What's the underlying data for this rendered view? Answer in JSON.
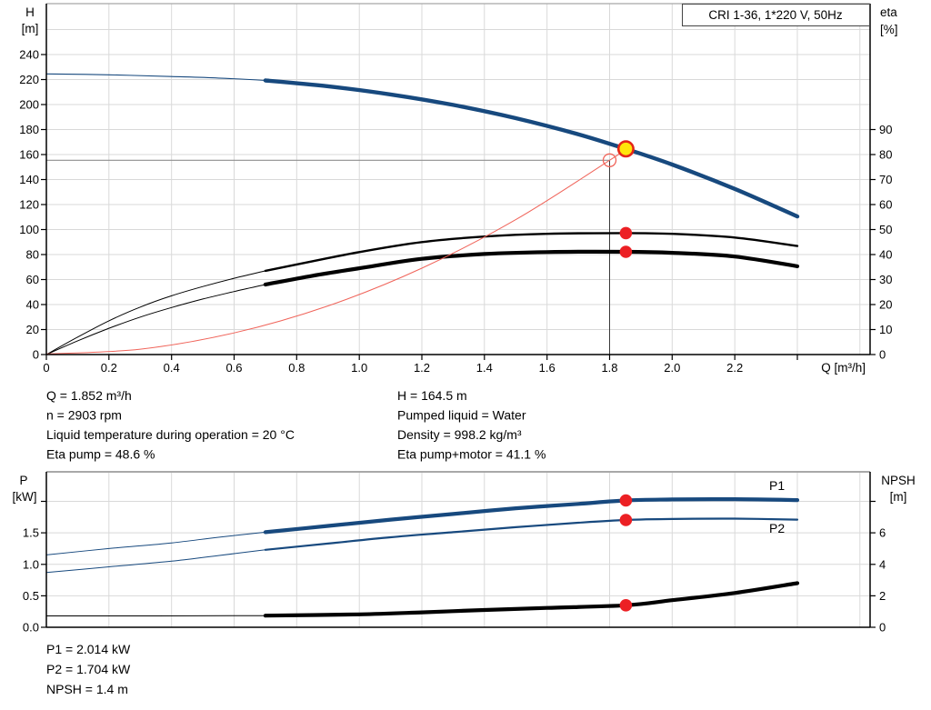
{
  "title_box": {
    "label": "CRI 1-36, 1*220 V, 50Hz"
  },
  "info_top": {
    "left": [
      "Q = 1.852 m³/h",
      "n = 2903 rpm",
      "Liquid temperature during operation = 20 °C",
      "Eta pump = 48.6 %"
    ],
    "right": [
      "H = 164.5 m",
      "Pumped liquid = Water",
      "Density = 998.2 kg/m³",
      "Eta pump+motor = 41.1 %"
    ]
  },
  "info_bottom": [
    "P1 = 2.014 kW",
    "P2 = 1.704 kW",
    "NPSH = 1.4 m"
  ],
  "colors": {
    "navy": "#17497e",
    "black": "#000000",
    "red_line": "#f0645a",
    "red_dot": "#ec2024",
    "yellow": "#ffe60a",
    "yellow_ring": "#e42618",
    "grid": "#d9d9d9",
    "border": "#a8a8a8",
    "crosshair_h": "#8f8f8f",
    "crosshair_v": "#3a3a3a"
  },
  "chart_data": [
    {
      "id": "qh-eta-chart",
      "type": "line",
      "x_axis": {
        "label": "Q [m³/h]",
        "min": 0,
        "max": 2.63,
        "tick_step": 0.2,
        "tick_labels": [
          "0",
          "0.2",
          "0.4",
          "0.6",
          "0.8",
          "1.0",
          "1.2",
          "1.4",
          "1.6",
          "1.8",
          "2.0",
          "2.2"
        ],
        "unlabeled_ticks": [
          2.4
        ]
      },
      "y_left": {
        "label": "H",
        "unit": "[m]",
        "min": 0,
        "max": 280,
        "tick_step": 20,
        "tick_labels": [
          "0",
          "20",
          "40",
          "60",
          "80",
          "100",
          "120",
          "140",
          "160",
          "180",
          "200",
          "220",
          "240"
        ]
      },
      "y_right": {
        "label": "eta",
        "unit": "[%]",
        "min": 0,
        "max": 140,
        "tick_step": 10,
        "tick_labels": [
          "0",
          "10",
          "20",
          "30",
          "40",
          "50",
          "60",
          "70",
          "80",
          "90"
        ]
      },
      "series": [
        {
          "name": "head-curve-lead",
          "axis": "left",
          "color": "navy",
          "width": 1.1,
          "points": [
            [
              0,
              224.5
            ],
            [
              0.2,
              223.8
            ],
            [
              0.4,
              222.4
            ],
            [
              0.55,
              221.2
            ],
            [
              0.7,
              219.3
            ]
          ]
        },
        {
          "name": "head-curve",
          "axis": "left",
          "color": "navy",
          "width": 4.4,
          "points": [
            [
              0.7,
              219.3
            ],
            [
              0.9,
              214.6
            ],
            [
              1.1,
              208.1
            ],
            [
              1.3,
              199.7
            ],
            [
              1.5,
              189.1
            ],
            [
              1.7,
              176.2
            ],
            [
              1.852,
              164.5
            ],
            [
              2.0,
              152.0
            ],
            [
              2.2,
              132.5
            ],
            [
              2.4,
              110.5
            ]
          ]
        },
        {
          "name": "eta-pump-lead",
          "axis": "right",
          "color": "black",
          "width": 1.0,
          "points": [
            [
              0,
              0
            ],
            [
              0.1,
              7
            ],
            [
              0.2,
              13.5
            ],
            [
              0.3,
              19
            ],
            [
              0.4,
              23.5
            ],
            [
              0.5,
              27.2
            ],
            [
              0.6,
              30.5
            ],
            [
              0.7,
              33.5
            ]
          ]
        },
        {
          "name": "eta-pump-curve",
          "axis": "right",
          "color": "black",
          "width": 2.4,
          "points": [
            [
              0.7,
              33.5
            ],
            [
              0.85,
              37.3
            ],
            [
              1.0,
              41.0
            ],
            [
              1.2,
              45.0
            ],
            [
              1.4,
              47.2
            ],
            [
              1.6,
              48.3
            ],
            [
              1.852,
              48.6
            ],
            [
              2.0,
              48.3
            ],
            [
              2.2,
              46.8
            ],
            [
              2.4,
              43.4
            ]
          ]
        },
        {
          "name": "eta-pump-motor-lead",
          "axis": "right",
          "color": "black",
          "width": 1.0,
          "points": [
            [
              0,
              0
            ],
            [
              0.1,
              5.5
            ],
            [
              0.2,
              10.5
            ],
            [
              0.3,
              15
            ],
            [
              0.4,
              18.8
            ],
            [
              0.5,
              22.2
            ],
            [
              0.6,
              25.2
            ],
            [
              0.7,
              28
            ]
          ]
        },
        {
          "name": "eta-pump-motor-curve",
          "axis": "right",
          "color": "black",
          "width": 4.2,
          "points": [
            [
              0.7,
              28
            ],
            [
              0.85,
              31.5
            ],
            [
              1.0,
              34.5
            ],
            [
              1.2,
              38.3
            ],
            [
              1.4,
              40.2
            ],
            [
              1.6,
              41.0
            ],
            [
              1.852,
              41.1
            ],
            [
              2.0,
              40.7
            ],
            [
              2.2,
              39.2
            ],
            [
              2.4,
              35.3
            ]
          ]
        },
        {
          "name": "system-curve",
          "axis": "left",
          "color": "red_line",
          "width": 1.0,
          "points": [
            [
              0,
              0.5
            ],
            [
              0.3,
              4.3
            ],
            [
              0.6,
              17.3
            ],
            [
              0.9,
              38.9
            ],
            [
              1.2,
              69.1
            ],
            [
              1.5,
              107.9
            ],
            [
              1.8,
              155.4
            ],
            [
              1.852,
              164.5
            ]
          ]
        }
      ],
      "duty_point": {
        "q": 1.852,
        "h": 164.5
      },
      "requested_point": {
        "q": 1.8,
        "h": 155.4
      },
      "dots": [
        {
          "q": 1.852,
          "axis": "right",
          "value": 48.6
        },
        {
          "q": 1.852,
          "axis": "right",
          "value": 41.1
        }
      ]
    },
    {
      "id": "power-npsh-chart",
      "type": "line",
      "x_axis": {
        "label": "",
        "min": 0,
        "max": 2.63,
        "tick_step": 0.2,
        "tick_labels": [],
        "unlabeled_ticks": []
      },
      "y_left": {
        "label": "P",
        "unit": "[kW]",
        "min": 0,
        "max": 2.47,
        "tick_step": 0.5,
        "tick_labels": [
          "0.0",
          "0.5",
          "1.0",
          "1.5"
        ],
        "unlabeled_ticks": [
          2.0
        ]
      },
      "y_right": {
        "label": "NPSH",
        "unit": "[m]",
        "min": 0,
        "max": 9.88,
        "tick_step": 2,
        "tick_labels": [
          "0",
          "2",
          "4",
          "6"
        ],
        "unlabeled_ticks": [
          8
        ]
      },
      "series": [
        {
          "name": "p1-curve-lead",
          "axis": "left",
          "color": "navy",
          "width": 1.0,
          "points": [
            [
              0,
              1.15
            ],
            [
              0.2,
              1.25
            ],
            [
              0.4,
              1.34
            ],
            [
              0.55,
              1.43
            ],
            [
              0.7,
              1.51
            ]
          ]
        },
        {
          "name": "p1-curve",
          "axis": "left",
          "color": "navy",
          "width": 4.2,
          "points": [
            [
              0.7,
              1.51
            ],
            [
              0.9,
              1.61
            ],
            [
              1.1,
              1.71
            ],
            [
              1.3,
              1.8
            ],
            [
              1.5,
              1.89
            ],
            [
              1.7,
              1.96
            ],
            [
              1.852,
              2.014
            ],
            [
              2.0,
              2.03
            ],
            [
              2.2,
              2.035
            ],
            [
              2.4,
              2.02
            ]
          ]
        },
        {
          "name": "p2-curve-lead",
          "axis": "left",
          "color": "navy",
          "width": 1.0,
          "points": [
            [
              0,
              0.87
            ],
            [
              0.2,
              0.96
            ],
            [
              0.4,
              1.05
            ],
            [
              0.55,
              1.14
            ],
            [
              0.7,
              1.23
            ]
          ]
        },
        {
          "name": "p2-curve",
          "axis": "left",
          "color": "navy",
          "width": 2.2,
          "points": [
            [
              0.7,
              1.23
            ],
            [
              0.9,
              1.33
            ],
            [
              1.1,
              1.43
            ],
            [
              1.3,
              1.51
            ],
            [
              1.5,
              1.59
            ],
            [
              1.7,
              1.66
            ],
            [
              1.852,
              1.704
            ],
            [
              2.0,
              1.72
            ],
            [
              2.2,
              1.725
            ],
            [
              2.4,
              1.71
            ]
          ]
        },
        {
          "name": "npsh-curve-lead",
          "axis": "right",
          "color": "black",
          "width": 1.0,
          "points": [
            [
              0,
              0.72
            ],
            [
              0.35,
              0.72
            ],
            [
              0.7,
              0.74
            ]
          ]
        },
        {
          "name": "npsh-curve",
          "axis": "right",
          "color": "black",
          "width": 4.2,
          "points": [
            [
              0.7,
              0.74
            ],
            [
              1.0,
              0.82
            ],
            [
              1.2,
              0.95
            ],
            [
              1.4,
              1.1
            ],
            [
              1.6,
              1.23
            ],
            [
              1.852,
              1.4
            ],
            [
              2.0,
              1.72
            ],
            [
              2.2,
              2.18
            ],
            [
              2.4,
              2.8
            ]
          ]
        }
      ],
      "labels": [
        {
          "text": "P1",
          "q": 2.31,
          "value": 2.18
        },
        {
          "text": "P2",
          "q": 2.31,
          "value": 1.5
        }
      ],
      "dots": [
        {
          "q": 1.852,
          "axis": "left",
          "value": 2.014
        },
        {
          "q": 1.852,
          "axis": "left",
          "value": 1.704
        },
        {
          "q": 1.852,
          "axis": "right",
          "value": 1.4
        }
      ]
    }
  ]
}
